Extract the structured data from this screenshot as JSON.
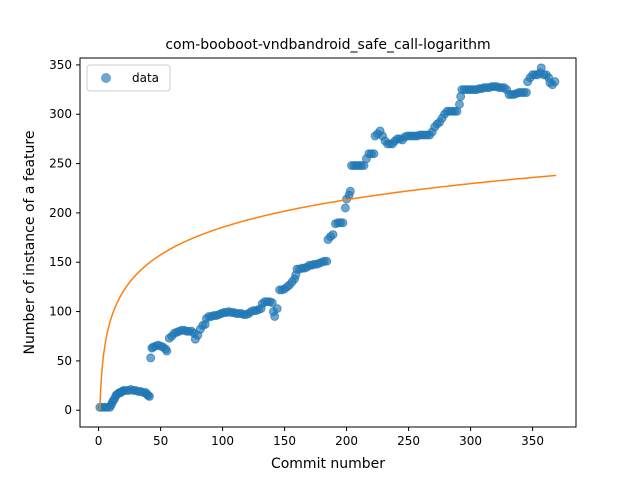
{
  "chart_data": {
    "type": "scatter",
    "title": "com-booboot-vndbandroid_safe_call-logarithm",
    "xlabel": "Commit number",
    "ylabel": "Number of instance of a feature",
    "xlim": [
      -15,
      385
    ],
    "ylim": [
      -17,
      357
    ],
    "xticks": [
      0,
      50,
      100,
      150,
      200,
      250,
      300,
      350
    ],
    "yticks": [
      0,
      50,
      100,
      150,
      200,
      250,
      300,
      350
    ],
    "legend": {
      "position": "top-left",
      "entries": [
        {
          "label": "data",
          "color": "#1f77b4"
        }
      ]
    },
    "grid": false,
    "series": [
      {
        "name": "data",
        "kind": "scatter",
        "color": "#1f77b4",
        "points": [
          [
            1,
            3
          ],
          [
            3,
            3
          ],
          [
            5,
            3
          ],
          [
            7,
            3
          ],
          [
            9,
            3
          ],
          [
            10,
            5
          ],
          [
            11,
            8
          ],
          [
            12,
            10
          ],
          [
            13,
            12
          ],
          [
            14,
            15
          ],
          [
            15,
            16
          ],
          [
            16,
            17
          ],
          [
            17,
            18
          ],
          [
            18,
            18
          ],
          [
            19,
            19
          ],
          [
            20,
            20
          ],
          [
            22,
            20
          ],
          [
            24,
            20
          ],
          [
            26,
            21
          ],
          [
            28,
            20
          ],
          [
            30,
            20
          ],
          [
            32,
            19
          ],
          [
            34,
            19
          ],
          [
            36,
            18
          ],
          [
            38,
            18
          ],
          [
            39,
            16
          ],
          [
            40,
            15
          ],
          [
            41,
            14
          ],
          [
            42,
            53
          ],
          [
            43,
            63
          ],
          [
            44,
            64
          ],
          [
            46,
            65
          ],
          [
            48,
            66
          ],
          [
            50,
            65
          ],
          [
            52,
            64
          ],
          [
            54,
            62
          ],
          [
            55,
            60
          ],
          [
            57,
            73
          ],
          [
            59,
            75
          ],
          [
            61,
            78
          ],
          [
            63,
            79
          ],
          [
            65,
            80
          ],
          [
            67,
            81
          ],
          [
            69,
            81
          ],
          [
            71,
            80
          ],
          [
            73,
            80
          ],
          [
            75,
            80
          ],
          [
            77,
            78
          ],
          [
            78,
            72
          ],
          [
            80,
            76
          ],
          [
            82,
            82
          ],
          [
            84,
            86
          ],
          [
            86,
            87
          ],
          [
            87,
            93
          ],
          [
            89,
            95
          ],
          [
            91,
            95
          ],
          [
            93,
            96
          ],
          [
            95,
            96
          ],
          [
            97,
            97
          ],
          [
            99,
            98
          ],
          [
            101,
            99
          ],
          [
            103,
            99
          ],
          [
            105,
            100
          ],
          [
            107,
            99
          ],
          [
            109,
            99
          ],
          [
            111,
            98
          ],
          [
            113,
            98
          ],
          [
            115,
            98
          ],
          [
            117,
            97
          ],
          [
            119,
            97
          ],
          [
            121,
            98
          ],
          [
            123,
            100
          ],
          [
            125,
            101
          ],
          [
            127,
            101
          ],
          [
            129,
            102
          ],
          [
            131,
            103
          ],
          [
            132,
            108
          ],
          [
            134,
            110
          ],
          [
            136,
            110
          ],
          [
            138,
            110
          ],
          [
            140,
            109
          ],
          [
            141,
            100
          ],
          [
            142,
            95
          ],
          [
            144,
            103
          ],
          [
            146,
            122
          ],
          [
            148,
            122
          ],
          [
            150,
            123
          ],
          [
            152,
            125
          ],
          [
            154,
            127
          ],
          [
            156,
            130
          ],
          [
            158,
            133
          ],
          [
            159,
            137
          ],
          [
            160,
            143
          ],
          [
            162,
            143
          ],
          [
            164,
            144
          ],
          [
            166,
            144
          ],
          [
            168,
            145
          ],
          [
            170,
            147
          ],
          [
            172,
            147
          ],
          [
            174,
            148
          ],
          [
            176,
            148
          ],
          [
            178,
            149
          ],
          [
            180,
            150
          ],
          [
            182,
            151
          ],
          [
            184,
            151
          ],
          [
            185,
            173
          ],
          [
            187,
            176
          ],
          [
            189,
            178
          ],
          [
            191,
            189
          ],
          [
            193,
            190
          ],
          [
            195,
            190
          ],
          [
            197,
            190
          ],
          [
            199,
            205
          ],
          [
            200,
            214
          ],
          [
            202,
            218
          ],
          [
            203,
            222
          ],
          [
            204,
            248
          ],
          [
            206,
            248
          ],
          [
            208,
            248
          ],
          [
            210,
            248
          ],
          [
            212,
            248
          ],
          [
            214,
            248
          ],
          [
            216,
            255
          ],
          [
            218,
            260
          ],
          [
            220,
            260
          ],
          [
            222,
            260
          ],
          [
            223,
            278
          ],
          [
            225,
            280
          ],
          [
            227,
            283
          ],
          [
            229,
            278
          ],
          [
            231,
            273
          ],
          [
            233,
            270
          ],
          [
            235,
            270
          ],
          [
            237,
            270
          ],
          [
            239,
            273
          ],
          [
            241,
            275
          ],
          [
            243,
            275
          ],
          [
            245,
            274
          ],
          [
            247,
            277
          ],
          [
            249,
            278
          ],
          [
            251,
            278
          ],
          [
            253,
            278
          ],
          [
            255,
            278
          ],
          [
            257,
            278
          ],
          [
            259,
            279
          ],
          [
            261,
            279
          ],
          [
            263,
            279
          ],
          [
            265,
            279
          ],
          [
            267,
            279
          ],
          [
            269,
            282
          ],
          [
            271,
            287
          ],
          [
            273,
            290
          ],
          [
            275,
            292
          ],
          [
            277,
            296
          ],
          [
            279,
            300
          ],
          [
            281,
            303
          ],
          [
            283,
            303
          ],
          [
            285,
            303
          ],
          [
            287,
            303
          ],
          [
            289,
            303
          ],
          [
            291,
            310
          ],
          [
            292,
            318
          ],
          [
            293,
            325
          ],
          [
            295,
            325
          ],
          [
            297,
            325
          ],
          [
            299,
            325
          ],
          [
            301,
            325
          ],
          [
            303,
            325
          ],
          [
            305,
            325
          ],
          [
            307,
            326
          ],
          [
            309,
            326
          ],
          [
            311,
            327
          ],
          [
            313,
            327
          ],
          [
            315,
            327
          ],
          [
            317,
            328
          ],
          [
            319,
            328
          ],
          [
            321,
            328
          ],
          [
            323,
            327
          ],
          [
            325,
            327
          ],
          [
            327,
            327
          ],
          [
            329,
            325
          ],
          [
            331,
            320
          ],
          [
            333,
            320
          ],
          [
            335,
            320
          ],
          [
            337,
            321
          ],
          [
            339,
            322
          ],
          [
            341,
            322
          ],
          [
            343,
            322
          ],
          [
            345,
            322
          ],
          [
            346,
            333
          ],
          [
            348,
            337
          ],
          [
            350,
            340
          ],
          [
            352,
            340
          ],
          [
            354,
            340
          ],
          [
            356,
            342
          ],
          [
            357,
            347
          ],
          [
            359,
            340
          ],
          [
            361,
            340
          ],
          [
            363,
            337
          ],
          [
            364,
            332
          ],
          [
            366,
            330
          ],
          [
            368,
            333
          ]
        ]
      },
      {
        "name": "",
        "kind": "line",
        "color": "#ff7f0e",
        "fit": "logarithmic",
        "x_range": [
          1,
          369
        ],
        "points": [
          [
            1,
            0
          ],
          [
            1.5,
            27.5
          ],
          [
            2,
            40.5
          ],
          [
            3,
            57.8
          ],
          [
            5,
            80.3
          ],
          [
            8,
            101.7
          ],
          [
            12,
            118.1
          ],
          [
            20,
            138.9
          ],
          [
            30,
            155.0
          ],
          [
            50,
            175.7
          ],
          [
            75,
            192.2
          ],
          [
            100,
            203.6
          ],
          [
            150,
            219.9
          ],
          [
            200,
            212.0
          ],
          [
            200,
            212.0
          ],
          [
            250,
            224.5
          ],
          [
            300,
            230.8
          ],
          [
            350,
            236.0
          ],
          [
            369,
            238.0
          ]
        ]
      }
    ]
  }
}
